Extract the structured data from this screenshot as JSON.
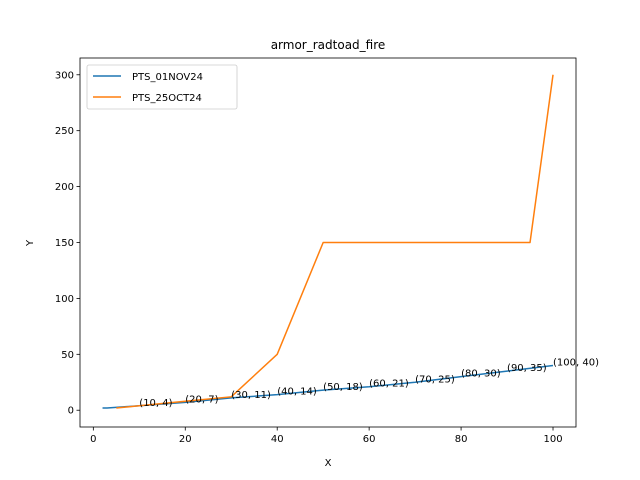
{
  "chart_data": {
    "type": "line",
    "title": "armor_radtoad_fire",
    "xlabel": "X",
    "ylabel": "Y",
    "xlim": [
      -2.9,
      105
    ],
    "ylim": [
      -15,
      315
    ],
    "xticks": [
      0,
      20,
      40,
      60,
      80,
      100
    ],
    "yticks": [
      0,
      50,
      100,
      150,
      200,
      250,
      300
    ],
    "grid": false,
    "legend_position": "top-left",
    "series": [
      {
        "name": "PTS_01NOV24",
        "color": "#1f77b4",
        "x": [
          2,
          3,
          10,
          20,
          30,
          40,
          50,
          60,
          70,
          80,
          90,
          100
        ],
        "y": [
          2,
          2,
          4,
          7,
          11,
          14,
          18,
          21,
          25,
          30,
          35,
          40
        ]
      },
      {
        "name": "PTS_25OCT24",
        "color": "#ff7f0e",
        "x": [
          5,
          10,
          20,
          30,
          40,
          50,
          95,
          100
        ],
        "y": [
          2,
          4,
          8,
          12,
          50,
          150,
          150,
          300
        ]
      }
    ],
    "annotations": [
      {
        "text": "(10, 4)",
        "x": 10,
        "y": 4
      },
      {
        "text": "(20, 7)",
        "x": 20,
        "y": 7
      },
      {
        "text": "(30, 11)",
        "x": 30,
        "y": 11
      },
      {
        "text": "(40, 14)",
        "x": 40,
        "y": 14
      },
      {
        "text": "(50, 18)",
        "x": 50,
        "y": 18
      },
      {
        "text": "(60, 21)",
        "x": 60,
        "y": 21
      },
      {
        "text": "(70, 25)",
        "x": 70,
        "y": 25
      },
      {
        "text": "(80, 30)",
        "x": 80,
        "y": 30
      },
      {
        "text": "(90, 35)",
        "x": 90,
        "y": 35
      },
      {
        "text": "(100, 40)",
        "x": 100,
        "y": 40
      }
    ]
  }
}
